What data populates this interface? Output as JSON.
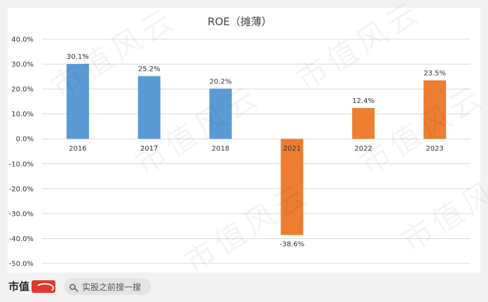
{
  "chart_data": {
    "type": "bar",
    "title": "ROE（摊薄）",
    "categories": [
      "2016",
      "2017",
      "2018",
      "2021",
      "2022",
      "2023"
    ],
    "values": [
      30.1,
      25.2,
      20.2,
      -38.6,
      12.4,
      23.5
    ],
    "data_labels": [
      "30.1%",
      "25.2%",
      "20.2%",
      "-38.6%",
      "12.4%",
      "23.5%"
    ],
    "bar_colors": [
      "#5b9bd5",
      "#5b9bd5",
      "#5b9bd5",
      "#ed7d31",
      "#ed7d31",
      "#ed7d31"
    ],
    "ylim": [
      -50,
      40
    ],
    "y_ticks": [
      40,
      30,
      20,
      10,
      0,
      -10,
      -20,
      -30,
      -40,
      -50
    ],
    "y_tick_labels": [
      "40.0%",
      "30.0%",
      "20.0%",
      "10.0%",
      "0.0%",
      "-10.0%",
      "-20.0%",
      "-30.0%",
      "-40.0%",
      "-50.0%"
    ],
    "grid": true,
    "legend": "none"
  },
  "footer": {
    "brand": "市值",
    "search_text": "实股之前搜一搜",
    "search_icon": "search-icon"
  },
  "watermark_text": "市值风云"
}
